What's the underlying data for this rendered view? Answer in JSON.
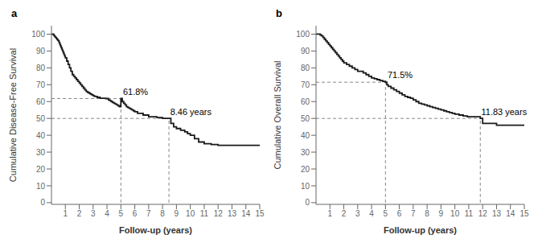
{
  "chart_data": [
    {
      "type": "step",
      "title": "a",
      "ylabel": "Cumulative Disease-Free Survival",
      "xlabel": "Follow-up (years)",
      "xlim": [
        0,
        15
      ],
      "ylim": [
        -1,
        105
      ],
      "yticks": [
        0,
        10,
        20,
        30,
        40,
        50,
        60,
        70,
        80,
        90,
        100
      ],
      "xticks": [
        1,
        2,
        3,
        4,
        5,
        6,
        7,
        8,
        9,
        10,
        11,
        12,
        13,
        14,
        15
      ],
      "color": "#1a1a1a",
      "x": [
        0.0,
        0.05,
        0.1,
        0.15,
        0.2,
        0.25,
        0.3,
        0.35,
        0.4,
        0.45,
        0.5,
        0.55,
        0.6,
        0.65,
        0.7,
        0.75,
        0.8,
        0.85,
        0.9,
        0.95,
        1.0,
        1.1,
        1.2,
        1.3,
        1.4,
        1.5,
        1.6,
        1.7,
        1.8,
        1.9,
        2.0,
        2.1,
        2.2,
        2.3,
        2.4,
        2.5,
        2.6,
        2.7,
        2.8,
        2.9,
        3.0,
        3.1,
        3.2,
        3.3,
        3.4,
        3.5,
        3.6,
        3.7,
        3.8,
        3.9,
        4.0,
        4.1,
        4.2,
        4.3,
        4.4,
        4.5,
        4.6,
        4.7,
        4.8,
        4.9,
        5.0,
        5.1,
        5.2,
        5.3,
        5.4,
        5.5,
        5.6,
        5.7,
        5.8,
        5.9,
        6.0,
        6.2,
        6.4,
        6.6,
        6.8,
        7.0,
        7.2,
        7.4,
        7.6,
        7.8,
        8.0,
        8.2,
        8.46,
        8.6,
        8.8,
        9.0,
        9.3,
        9.6,
        9.8,
        10.0,
        10.3,
        10.6,
        11.0,
        11.5,
        12.0,
        15.0
      ],
      "values": [
        100,
        100,
        100,
        99.5,
        99,
        98.5,
        98,
        97.5,
        97,
        96.5,
        96,
        95,
        94,
        93,
        92,
        91,
        90,
        89,
        88,
        87,
        86,
        84,
        82,
        80,
        78,
        76,
        75,
        74,
        73,
        72,
        71,
        70,
        69,
        68,
        67,
        66,
        65.5,
        65,
        64.5,
        64,
        63.5,
        63,
        63,
        62.5,
        62.5,
        62,
        62,
        62,
        62,
        61.8,
        61.8,
        61,
        60.5,
        60,
        59.5,
        59,
        58.5,
        58,
        57.5,
        57,
        61.8,
        60,
        59,
        58,
        57,
        56.5,
        56,
        55.5,
        55,
        54.5,
        54,
        53,
        53,
        52,
        52,
        51,
        51,
        51,
        50.5,
        50.5,
        50,
        50,
        50,
        47,
        45,
        44,
        43,
        42,
        41,
        40,
        38,
        36,
        35,
        34.5,
        34,
        34
      ],
      "reference_lines": [
        {
          "x": [
            0,
            5.0
          ],
          "y": [
            61.8,
            61.8
          ],
          "color": "#888888",
          "line_style": "dashed"
        },
        {
          "x": [
            5.0,
            5.0
          ],
          "y": [
            0,
            61.8
          ],
          "color": "#888888",
          "line_style": "dashed"
        },
        {
          "x": [
            0,
            8.46
          ],
          "y": [
            50,
            50
          ],
          "color": "#888888",
          "line_style": "dashed"
        },
        {
          "x": [
            8.46,
            8.46
          ],
          "y": [
            0,
            50
          ],
          "color": "#888888",
          "line_style": "dashed"
        }
      ],
      "annotations": [
        {
          "text": "61.8%",
          "x": 5.15,
          "y": 63.5
        },
        {
          "text": "8.46 years",
          "x": 8.55,
          "y": 51.5
        }
      ]
    },
    {
      "type": "step",
      "title": "b",
      "ylabel": "Cumulative Overall Survival",
      "xlabel": "Follow-up (years)",
      "xlim": [
        0,
        15
      ],
      "ylim": [
        -1,
        105
      ],
      "yticks": [
        0,
        10,
        20,
        30,
        40,
        50,
        60,
        70,
        80,
        90,
        100
      ],
      "xticks": [
        1,
        2,
        3,
        4,
        5,
        6,
        7,
        8,
        9,
        10,
        11,
        12,
        13,
        14,
        15
      ],
      "color": "#1a1a1a",
      "x": [
        0.0,
        0.1,
        0.2,
        0.3,
        0.4,
        0.5,
        0.6,
        0.7,
        0.8,
        0.9,
        1.0,
        1.1,
        1.2,
        1.3,
        1.4,
        1.5,
        1.6,
        1.7,
        1.8,
        1.9,
        2.0,
        2.2,
        2.4,
        2.6,
        2.8,
        3.0,
        3.2,
        3.4,
        3.6,
        3.8,
        4.0,
        4.2,
        4.4,
        4.6,
        4.8,
        5.0,
        5.1,
        5.2,
        5.4,
        5.6,
        5.8,
        6.0,
        6.2,
        6.4,
        6.6,
        6.8,
        7.0,
        7.2,
        7.4,
        7.6,
        7.8,
        8.0,
        8.2,
        8.4,
        8.6,
        8.8,
        9.0,
        9.2,
        9.4,
        9.6,
        9.8,
        10.0,
        10.3,
        10.6,
        10.9,
        11.2,
        11.5,
        11.83,
        12.0,
        13.0,
        15.0
      ],
      "values": [
        100,
        100,
        100,
        99.5,
        99,
        98,
        97,
        96,
        95,
        94,
        93,
        92,
        91,
        90,
        89,
        88,
        87,
        86,
        85,
        84,
        83,
        82,
        81,
        80,
        79,
        78,
        78,
        77,
        76,
        75,
        74,
        73.5,
        73,
        72.5,
        72,
        71.5,
        70,
        69,
        68,
        67,
        66,
        65,
        64,
        63,
        62.5,
        62,
        61,
        60,
        59,
        58.5,
        58,
        57.5,
        57,
        56.5,
        56,
        55.5,
        55,
        54.5,
        54,
        53.5,
        53,
        52.5,
        52,
        51.5,
        51,
        51,
        51,
        50,
        47,
        46,
        46
      ],
      "reference_lines": [
        {
          "x": [
            0,
            5.0
          ],
          "y": [
            71.5,
            71.5
          ],
          "color": "#888888",
          "line_style": "dashed"
        },
        {
          "x": [
            5.0,
            5.0
          ],
          "y": [
            0,
            71.5
          ],
          "color": "#888888",
          "line_style": "dashed"
        },
        {
          "x": [
            0,
            11.83
          ],
          "y": [
            50,
            50
          ],
          "color": "#888888",
          "line_style": "dashed"
        },
        {
          "x": [
            11.83,
            11.83
          ],
          "y": [
            0,
            50
          ],
          "color": "#888888",
          "line_style": "dashed"
        }
      ],
      "annotations": [
        {
          "text": "71.5%",
          "x": 5.15,
          "y": 73.5
        },
        {
          "text": "11.83 years",
          "x": 11.9,
          "y": 51.5
        }
      ]
    }
  ]
}
